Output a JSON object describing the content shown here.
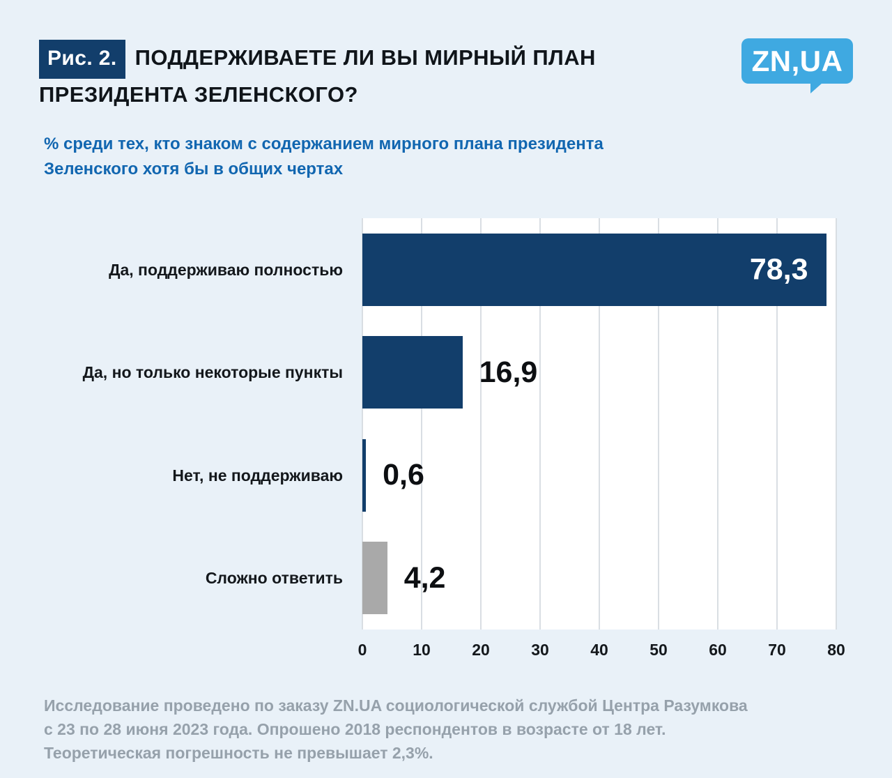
{
  "colors": {
    "background": "#e9f1f8",
    "navy": "#123e6b",
    "subtitle_blue": "#1166b0",
    "logo_blue": "#3fa9e1",
    "gray_bar": "#a9a9a9",
    "footer_gray": "#96a1ab",
    "gridline": "#d9dee3",
    "plot_background": "#ffffff"
  },
  "header": {
    "fig_label": "Рис. 2.",
    "title_line1": "ПОДДЕРЖИВАЕТЕ ЛИ ВЫ МИРНЫЙ ПЛАН",
    "title_line2": "ПРЕЗИДЕНТА ЗЕЛЕНСКОГО?",
    "logo_text": "ZN,UA"
  },
  "subtitle": {
    "line1": "% среди тех, кто знаком с содержанием мирного плана президента",
    "line2": "Зеленского хотя бы в общих чертах"
  },
  "chart_data": {
    "type": "bar",
    "orientation": "horizontal",
    "title": "Поддерживаете ли вы мирный план президента Зеленского?",
    "categories": [
      "Да, поддерживаю полностью",
      "Да, но только некоторые пункты",
      "Нет, не поддерживаю",
      "Сложно ответить"
    ],
    "values": [
      78.3,
      16.9,
      0.6,
      4.2
    ],
    "value_labels": [
      "78,3",
      "16,9",
      "0,6",
      "4,2"
    ],
    "bar_colors": [
      "#123e6b",
      "#123e6b",
      "#123e6b",
      "#a9a9a9"
    ],
    "xlim": [
      0,
      80
    ],
    "x_ticks": [
      0,
      10,
      20,
      30,
      40,
      50,
      60,
      70,
      80
    ],
    "grid": true,
    "legend": false,
    "unit": "%"
  },
  "footer": {
    "line1": "Исследование проведено по заказу ZN.UA социологической службой Центра Разумкова",
    "line2": "с 23 по 28 июня 2023 года. Опрошено 2018 респондентов в возрасте от 18 лет.",
    "line3": "Теоретическая погрешность не превышает 2,3%."
  }
}
